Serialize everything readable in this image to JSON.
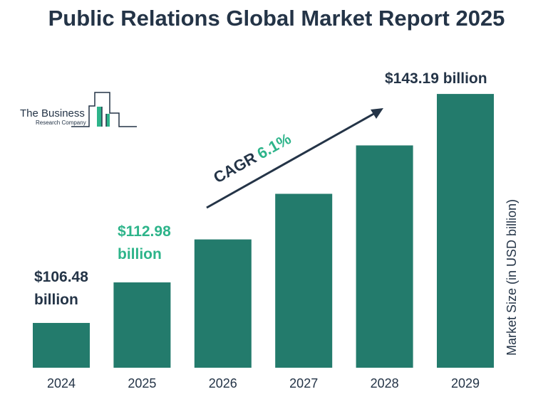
{
  "title": "Public Relations Global Market Report 2025",
  "logo": {
    "line1": "The Business",
    "line2": "Research Company"
  },
  "chart_data": {
    "type": "bar",
    "title": "Public Relations Global Market Report 2025",
    "categories": [
      "2024",
      "2025",
      "2026",
      "2027",
      "2028",
      "2029"
    ],
    "values": [
      106.48,
      112.98,
      119.87,
      127.18,
      134.94,
      143.19
    ],
    "ylabel": "Market Size (in USD billion)",
    "xlabel": "",
    "grid": false,
    "annotations": {
      "first": {
        "value": "$106.48",
        "unit": "billion"
      },
      "second": {
        "value": "$112.98",
        "unit": "billion"
      },
      "last": "$143.19 billion",
      "cagr_label": "CAGR",
      "cagr_value": "6.1%"
    }
  },
  "colors": {
    "bar": "#237b6c",
    "title": "#243447",
    "accent": "#2db48a"
  }
}
